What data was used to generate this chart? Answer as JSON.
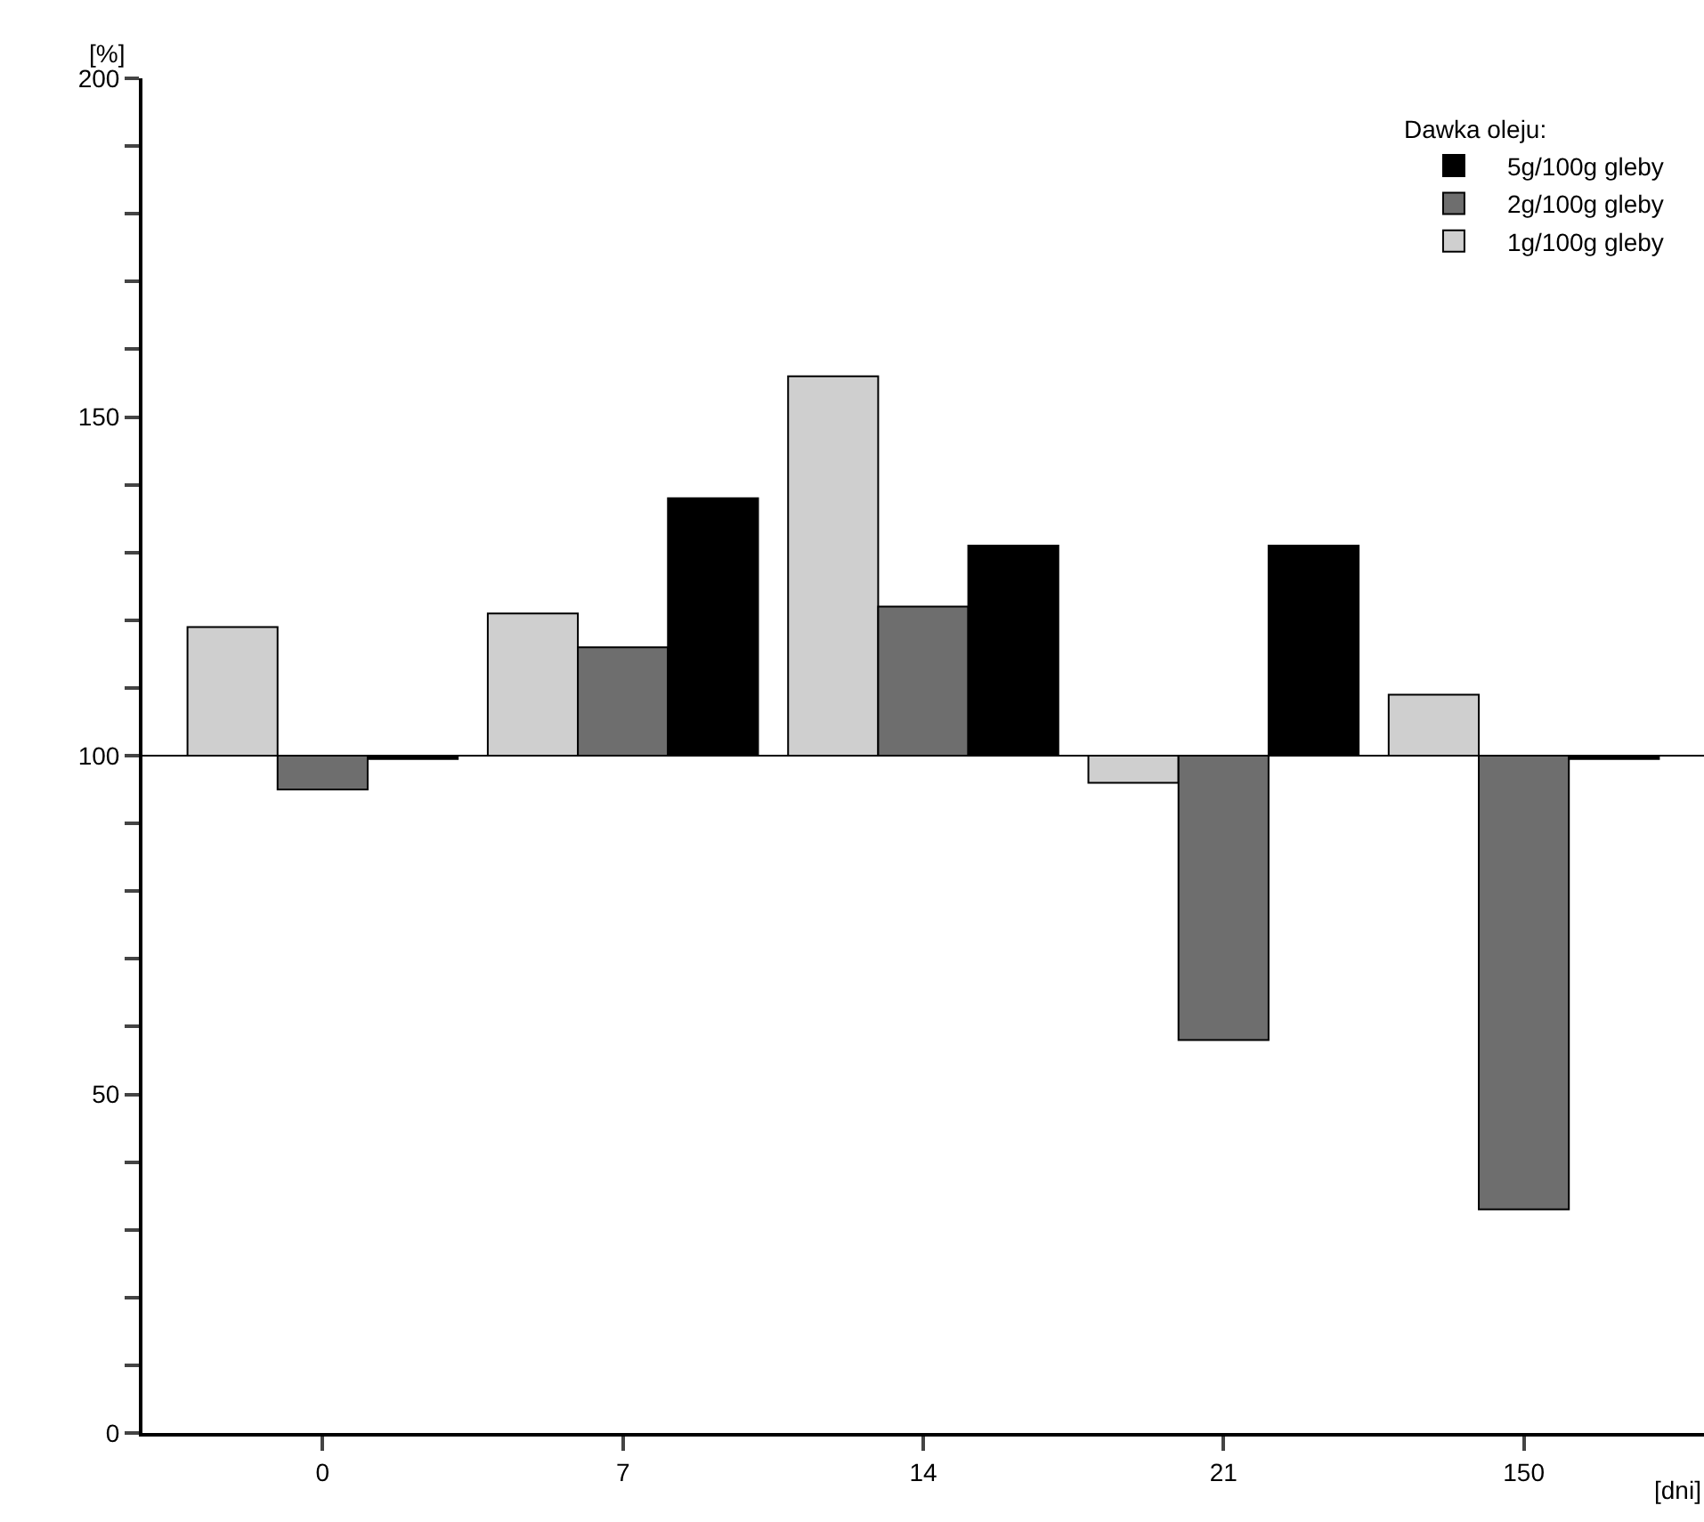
{
  "chart_data": {
    "type": "bar",
    "xlabel": "[dni]",
    "ylabel": "[%]",
    "legend_title": "Dawka oleju:",
    "categories": [
      "0",
      "7",
      "14",
      "21",
      "150"
    ],
    "series": [
      {
        "name": "1g/100g gleby",
        "color": "#cfcfcf",
        "base": [
          100,
          100,
          100,
          100,
          100
        ],
        "values": [
          19,
          21,
          56,
          -4,
          9
        ]
      },
      {
        "name": "2g/100g gleby",
        "color": "#6e6e6e",
        "base": [
          100,
          100,
          100,
          100,
          100
        ],
        "values": [
          -5,
          16,
          22,
          -42,
          -67
        ]
      },
      {
        "name": "5g/100g gleby",
        "color": "#000000",
        "base": [
          100,
          100,
          100,
          100,
          100
        ],
        "values": [
          -0.5,
          38,
          31,
          31,
          -0.5
        ]
      }
    ],
    "ylim": [
      0,
      200
    ],
    "yticks": [
      0,
      {
        "value": 10,
        "label": null
      },
      {
        "value": 20,
        "label": null
      },
      {
        "value": 30,
        "label": null
      },
      {
        "value": 40,
        "label": null
      },
      50,
      {
        "value": 60,
        "label": null
      },
      {
        "value": 70,
        "label": null
      },
      {
        "value": 80,
        "label": null
      },
      {
        "value": 90,
        "label": null
      },
      100,
      {
        "value": 110,
        "label": null
      },
      {
        "value": 120,
        "label": null
      },
      {
        "value": 130,
        "label": null
      },
      {
        "value": 140,
        "label": null
      },
      150,
      {
        "value": 160,
        "label": null
      },
      {
        "value": 170,
        "label": null
      },
      {
        "value": 180,
        "label": null
      },
      {
        "value": 190,
        "label": null
      },
      200
    ],
    "ref_lines": [
      {
        "axis": "y",
        "value": 100,
        "color": "#000000"
      }
    ],
    "grid": false,
    "legend": "top right"
  }
}
